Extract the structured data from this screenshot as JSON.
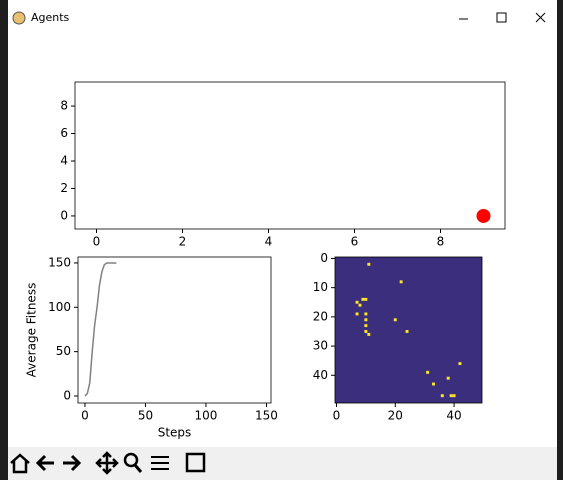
{
  "window": {
    "title": "Agents"
  },
  "chart_data": [
    {
      "type": "scatter",
      "x": [
        9
      ],
      "y": [
        0
      ],
      "color": "#ff0000",
      "xlim": [
        -0.5,
        9.5
      ],
      "ylim": [
        -0.95,
        9.75
      ],
      "xticks": [
        0,
        2,
        4,
        6,
        8
      ],
      "yticks": [
        0,
        2,
        4,
        6,
        8
      ]
    },
    {
      "type": "line",
      "x": [
        0,
        2,
        4,
        6,
        8,
        10,
        12,
        14,
        16,
        18,
        26
      ],
      "values": [
        0,
        3,
        15,
        50,
        80,
        100,
        125,
        140,
        148,
        150,
        150
      ],
      "color": "#808080",
      "xlabel": "Steps",
      "ylabel": "Average Fitness",
      "xlim": [
        -5.75,
        153.75
      ],
      "ylim": [
        -7.9,
        156.7
      ],
      "xticks": [
        0,
        50,
        100,
        150
      ],
      "yticks": [
        0,
        50,
        100,
        150
      ]
    },
    {
      "type": "heatmap",
      "x": [
        11,
        22,
        7,
        8,
        9,
        10,
        7,
        10,
        10,
        10,
        10,
        11,
        20,
        24,
        42,
        31,
        38,
        33,
        36,
        39,
        40
      ],
      "y": [
        2,
        8,
        15,
        16,
        14,
        14,
        19,
        19,
        21,
        23,
        25,
        26,
        21,
        25,
        36,
        39,
        41,
        43,
        47,
        47,
        47
      ],
      "color": "#fde725",
      "background": "#3b2e7c",
      "xlim": [
        -0.5,
        49.5
      ],
      "ylim": [
        49.5,
        -0.5
      ],
      "xticks": [
        0,
        20,
        40
      ],
      "yticks": [
        0,
        10,
        20,
        30,
        40
      ]
    }
  ]
}
